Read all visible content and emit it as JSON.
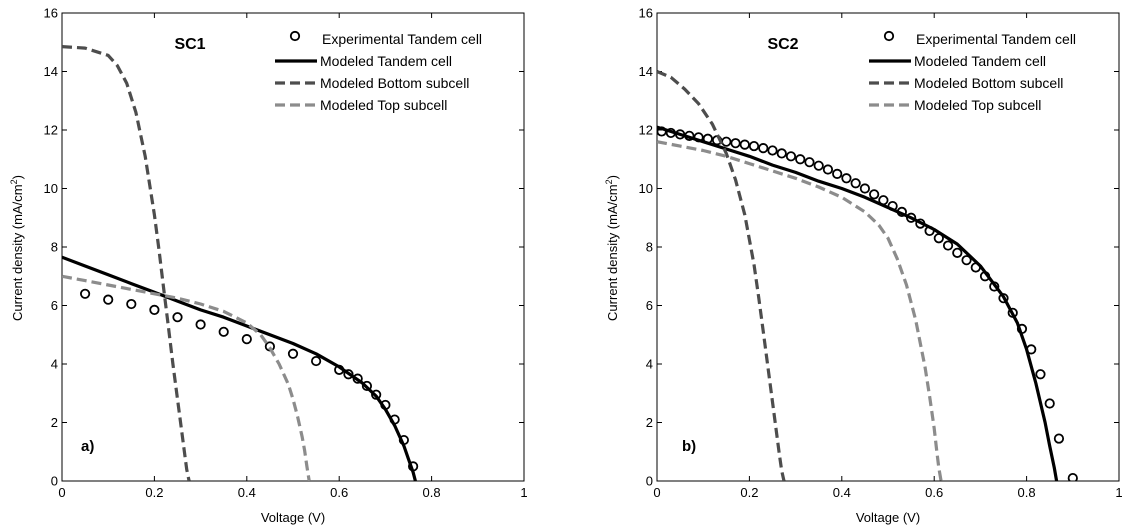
{
  "chart_data": [
    {
      "type": "line",
      "title": "SC1",
      "panel_label": "a)",
      "xlabel": "Voltage (V)",
      "ylabel_main": "Current density (mA/cm",
      "ylabel_sup": "2",
      "ylabel_end": ")",
      "xlim": [
        0,
        1
      ],
      "ylim": [
        0,
        16
      ],
      "xticks": [
        0,
        0.2,
        0.4,
        0.6,
        0.8,
        1
      ],
      "xtick_labels": [
        "0",
        "0.2",
        "0.4",
        "0.6",
        "0.8",
        "1"
      ],
      "yticks": [
        0,
        2,
        4,
        6,
        8,
        10,
        12,
        14,
        16
      ],
      "ytick_labels": [
        "0",
        "2",
        "4",
        "6",
        "8",
        "10",
        "12",
        "14",
        "16"
      ],
      "grid": false,
      "legend_position": "top-right",
      "series": [
        {
          "name": "Experimental Tandem cell",
          "style": "markers",
          "color": "#000000",
          "x": [
            0.05,
            0.1,
            0.15,
            0.2,
            0.25,
            0.3,
            0.35,
            0.4,
            0.45,
            0.5,
            0.55,
            0.6,
            0.62,
            0.64,
            0.66,
            0.68,
            0.7,
            0.72,
            0.74,
            0.76
          ],
          "y": [
            6.4,
            6.2,
            6.05,
            5.85,
            5.6,
            5.35,
            5.1,
            4.85,
            4.6,
            4.35,
            4.1,
            3.8,
            3.65,
            3.5,
            3.25,
            2.95,
            2.6,
            2.1,
            1.4,
            0.5
          ]
        },
        {
          "name": "Modeled Tandem cell",
          "style": "solid",
          "color": "#000000",
          "x": [
            0,
            0.05,
            0.1,
            0.15,
            0.2,
            0.25,
            0.3,
            0.35,
            0.4,
            0.45,
            0.5,
            0.55,
            0.6,
            0.65,
            0.68,
            0.7,
            0.72,
            0.74,
            0.75,
            0.76,
            0.765
          ],
          "y": [
            7.65,
            7.35,
            7.05,
            6.75,
            6.45,
            6.15,
            5.85,
            5.6,
            5.3,
            5.0,
            4.7,
            4.35,
            3.9,
            3.35,
            2.9,
            2.45,
            1.9,
            1.2,
            0.75,
            0.3,
            0
          ]
        },
        {
          "name": "Modeled Bottom subcell",
          "style": "dashed",
          "color": "#4d4d4d",
          "x": [
            0,
            0.05,
            0.1,
            0.12,
            0.14,
            0.16,
            0.18,
            0.2,
            0.21,
            0.22,
            0.23,
            0.24,
            0.25,
            0.26,
            0.265,
            0.27,
            0.275
          ],
          "y": [
            14.85,
            14.8,
            14.55,
            14.2,
            13.6,
            12.6,
            11.1,
            9.1,
            7.9,
            6.6,
            5.3,
            4.0,
            2.8,
            1.6,
            1.0,
            0.4,
            0
          ]
        },
        {
          "name": "Modeled Top subcell",
          "style": "dashed",
          "color": "#8c8c8c",
          "x": [
            0,
            0.05,
            0.1,
            0.15,
            0.2,
            0.25,
            0.3,
            0.35,
            0.4,
            0.43,
            0.45,
            0.47,
            0.49,
            0.5,
            0.51,
            0.52,
            0.525,
            0.53,
            0.535
          ],
          "y": [
            7.0,
            6.85,
            6.7,
            6.55,
            6.4,
            6.25,
            6.05,
            5.8,
            5.4,
            5.0,
            4.55,
            4.0,
            3.3,
            2.8,
            2.2,
            1.5,
            1.05,
            0.5,
            0
          ]
        }
      ]
    },
    {
      "type": "line",
      "title": "SC2",
      "panel_label": "b)",
      "xlabel": "Voltage (V)",
      "ylabel_main": "Current density (mA/cm",
      "ylabel_sup": "2",
      "ylabel_end": ")",
      "xlim": [
        0,
        1
      ],
      "ylim": [
        0,
        16
      ],
      "xticks": [
        0,
        0.2,
        0.4,
        0.6,
        0.8,
        1
      ],
      "xtick_labels": [
        "0",
        "0.2",
        "0.4",
        "0.6",
        "0.8",
        "1"
      ],
      "yticks": [
        0,
        2,
        4,
        6,
        8,
        10,
        12,
        14,
        16
      ],
      "ytick_labels": [
        "0",
        "2",
        "4",
        "6",
        "8",
        "10",
        "12",
        "14",
        "16"
      ],
      "grid": false,
      "legend_position": "top-right",
      "series": [
        {
          "name": "Experimental Tandem cell",
          "style": "markers",
          "color": "#000000",
          "x": [
            0.01,
            0.03,
            0.05,
            0.07,
            0.09,
            0.11,
            0.13,
            0.15,
            0.17,
            0.19,
            0.21,
            0.23,
            0.25,
            0.27,
            0.29,
            0.31,
            0.33,
            0.35,
            0.37,
            0.39,
            0.41,
            0.43,
            0.45,
            0.47,
            0.49,
            0.51,
            0.53,
            0.55,
            0.57,
            0.59,
            0.61,
            0.63,
            0.65,
            0.67,
            0.69,
            0.71,
            0.73,
            0.75,
            0.77,
            0.79,
            0.81,
            0.83,
            0.85,
            0.87,
            0.9
          ],
          "y": [
            11.95,
            11.9,
            11.85,
            11.8,
            11.75,
            11.7,
            11.65,
            11.6,
            11.55,
            11.5,
            11.45,
            11.38,
            11.3,
            11.2,
            11.1,
            11.0,
            10.9,
            10.78,
            10.65,
            10.5,
            10.35,
            10.18,
            10.0,
            9.8,
            9.6,
            9.4,
            9.2,
            9.0,
            8.8,
            8.55,
            8.3,
            8.05,
            7.8,
            7.55,
            7.3,
            7.0,
            6.65,
            6.25,
            5.75,
            5.2,
            4.5,
            3.65,
            2.65,
            1.45,
            0.1
          ]
        },
        {
          "name": "Modeled Tandem cell",
          "style": "solid",
          "color": "#000000",
          "x": [
            0,
            0.05,
            0.1,
            0.15,
            0.2,
            0.25,
            0.3,
            0.35,
            0.4,
            0.45,
            0.5,
            0.55,
            0.6,
            0.65,
            0.7,
            0.75,
            0.78,
            0.8,
            0.82,
            0.84,
            0.85,
            0.86,
            0.865
          ],
          "y": [
            12.1,
            11.85,
            11.6,
            11.35,
            11.1,
            10.8,
            10.55,
            10.25,
            10.0,
            9.7,
            9.35,
            9.0,
            8.6,
            8.1,
            7.35,
            6.3,
            5.4,
            4.5,
            3.35,
            2.0,
            1.2,
            0.45,
            0
          ]
        },
        {
          "name": "Modeled Bottom subcell",
          "style": "dashed",
          "color": "#4d4d4d",
          "x": [
            0,
            0.03,
            0.06,
            0.09,
            0.12,
            0.15,
            0.17,
            0.19,
            0.21,
            0.22,
            0.23,
            0.24,
            0.25,
            0.26,
            0.265,
            0.27,
            0.275
          ],
          "y": [
            14.0,
            13.8,
            13.4,
            12.9,
            12.2,
            11.2,
            10.3,
            9.1,
            7.4,
            6.3,
            5.1,
            3.9,
            2.7,
            1.5,
            0.9,
            0.35,
            0
          ]
        },
        {
          "name": "Modeled Top subcell",
          "style": "dashed",
          "color": "#8c8c8c",
          "x": [
            0,
            0.05,
            0.1,
            0.15,
            0.2,
            0.25,
            0.3,
            0.35,
            0.4,
            0.45,
            0.48,
            0.5,
            0.52,
            0.54,
            0.56,
            0.58,
            0.59,
            0.6,
            0.605,
            0.61,
            0.615
          ],
          "y": [
            11.6,
            11.45,
            11.3,
            11.1,
            10.85,
            10.6,
            10.35,
            10.05,
            9.7,
            9.2,
            8.75,
            8.3,
            7.6,
            6.7,
            5.5,
            3.9,
            2.9,
            1.8,
            1.1,
            0.45,
            0
          ]
        }
      ]
    }
  ]
}
